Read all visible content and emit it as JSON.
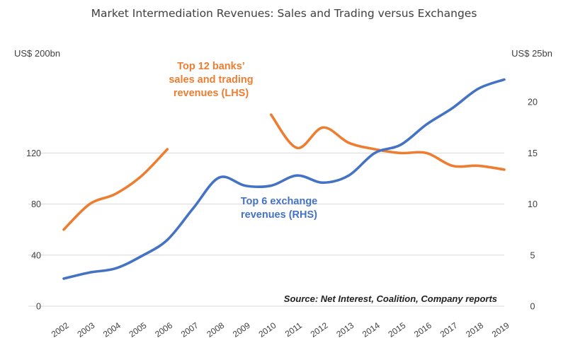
{
  "chart_data": {
    "type": "line",
    "title": "Market Intermediation Revenues: Sales and Trading versus Exchanges",
    "left_axis_label": "US$ 200bn",
    "right_axis_label": "US$ 25bn",
    "left_ylim": [
      0,
      200
    ],
    "right_ylim": [
      0,
      25
    ],
    "left_ticks": [
      "0",
      "40",
      "80",
      "120"
    ],
    "right_ticks": [
      "0",
      "5",
      "10",
      "15",
      "20"
    ],
    "left_tick_values": [
      0,
      40,
      80,
      120
    ],
    "right_tick_values": [
      0,
      5,
      10,
      15,
      20
    ],
    "categories": [
      "2002",
      "2003",
      "2004",
      "2005",
      "2006",
      "2007",
      "2008",
      "2009",
      "2010",
      "2011",
      "2012",
      "2013",
      "2014",
      "2015",
      "2016",
      "2017",
      "2018",
      "2019"
    ],
    "grid": true,
    "series": [
      {
        "name": "Top 12 banks' sales and trading revenues (LHS)",
        "label_lines": [
          "Top 12 banks’",
          "sales and trading",
          "revenues (LHS)"
        ],
        "axis": "left",
        "color": "#ED7D31",
        "values": [
          60,
          80,
          88,
          102,
          123,
          null,
          null,
          null,
          150,
          124,
          140,
          128,
          123,
          120,
          120,
          110,
          110,
          107
        ]
      },
      {
        "name": "Top 6 exchange revenues (RHS)",
        "label_lines": [
          "Top 6 exchange",
          "revenues (RHS)"
        ],
        "axis": "right",
        "color": "#4472C4",
        "values": [
          2.7,
          3.3,
          3.7,
          4.9,
          6.5,
          9.6,
          12.6,
          11.8,
          11.8,
          12.8,
          12.1,
          12.8,
          15.0,
          15.8,
          17.8,
          19.4,
          21.3,
          22.2
        ]
      }
    ],
    "source": "Source: Net Interest, Coalition, Company reports"
  }
}
